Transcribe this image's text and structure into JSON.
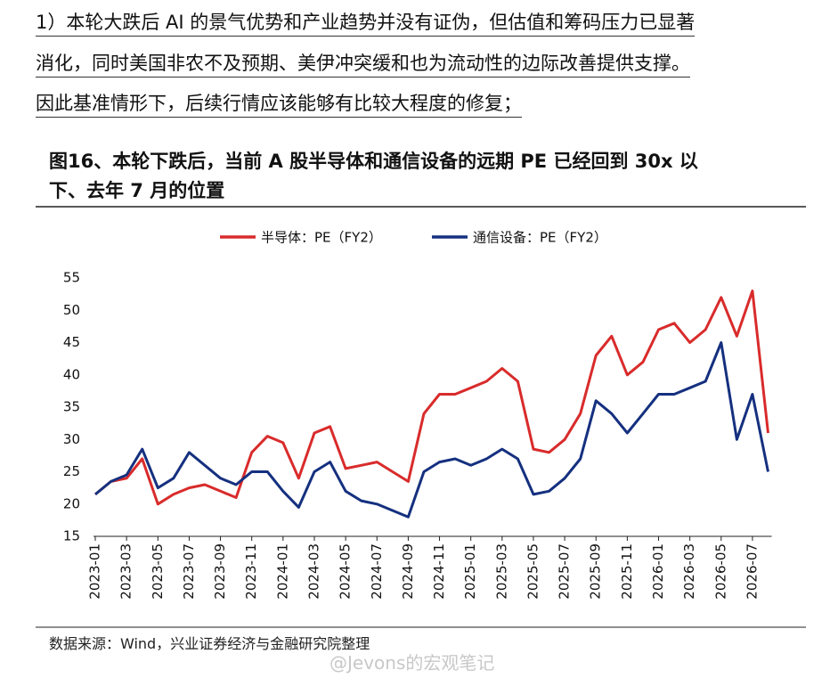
{
  "document": {
    "paragraph": [
      "1）本轮大跌后 AI 的景气优势和产业趋势并没有证伪，但估值和筹码压力已显著",
      "消化，同时美国非农不及预期、美伊冲突缓和也为流动性的边际改善提供支撑。",
      "因此基准情形下，后续行情应该能够有比较大程度的修复；"
    ],
    "figure_title": [
      "图16、本轮下跌后，当前 A 股半导体和通信设备的远期 PE 已经回到 30x 以",
      "下、去年 7 月的位置"
    ],
    "source": "数据来源：Wind，兴业证券经济与金融研究院整理",
    "watermark": "@Jevons的宏观笔记"
  },
  "chart_data": {
    "type": "line",
    "categories": [
      "2023-01",
      null,
      "2023-03",
      null,
      "2023-05",
      null,
      "2023-07",
      null,
      "2023-09",
      null,
      "2023-11",
      null,
      "2024-01",
      null,
      "2024-03",
      null,
      "2024-05",
      null,
      "2024-07",
      null,
      "2024-09",
      null,
      "2024-11",
      null,
      "2025-01",
      null,
      "2025-03",
      null,
      "2025-05",
      null,
      "2025-07",
      null,
      "2025-09",
      null,
      "2025-11",
      null,
      "2026-01",
      null,
      "2026-03",
      null,
      "2026-05",
      null,
      "2026-07",
      null
    ],
    "series": [
      {
        "name": "半导体：PE（FY2）",
        "color": "#d92b2b",
        "values": [
          21.5,
          23.5,
          24,
          27,
          20,
          21.5,
          22.5,
          23,
          22,
          21,
          28,
          30.5,
          29.5,
          24,
          31,
          32,
          25.5,
          26,
          26.5,
          25,
          23.5,
          34,
          37,
          37,
          38,
          39,
          41,
          39,
          28.5,
          28,
          30,
          34,
          43,
          46,
          40,
          42,
          47,
          48,
          45,
          47,
          52,
          46,
          53,
          31
        ]
      },
      {
        "name": "通信设备：PE（FY2）",
        "color": "#15307f",
        "values": [
          21.5,
          23.5,
          24.5,
          28.5,
          22.5,
          24,
          28,
          26,
          24,
          23,
          25,
          25,
          22,
          19.5,
          25,
          26.5,
          22,
          20.5,
          20,
          19,
          18,
          25,
          26.5,
          27,
          26,
          27,
          28.5,
          27,
          21.5,
          22,
          24,
          27,
          36,
          34,
          31,
          34,
          37,
          37,
          38,
          39,
          45,
          30,
          37,
          25
        ]
      }
    ],
    "ylim": [
      15,
      55
    ],
    "yticks": [
      15,
      20,
      25,
      30,
      35,
      40,
      45,
      50,
      55
    ]
  }
}
